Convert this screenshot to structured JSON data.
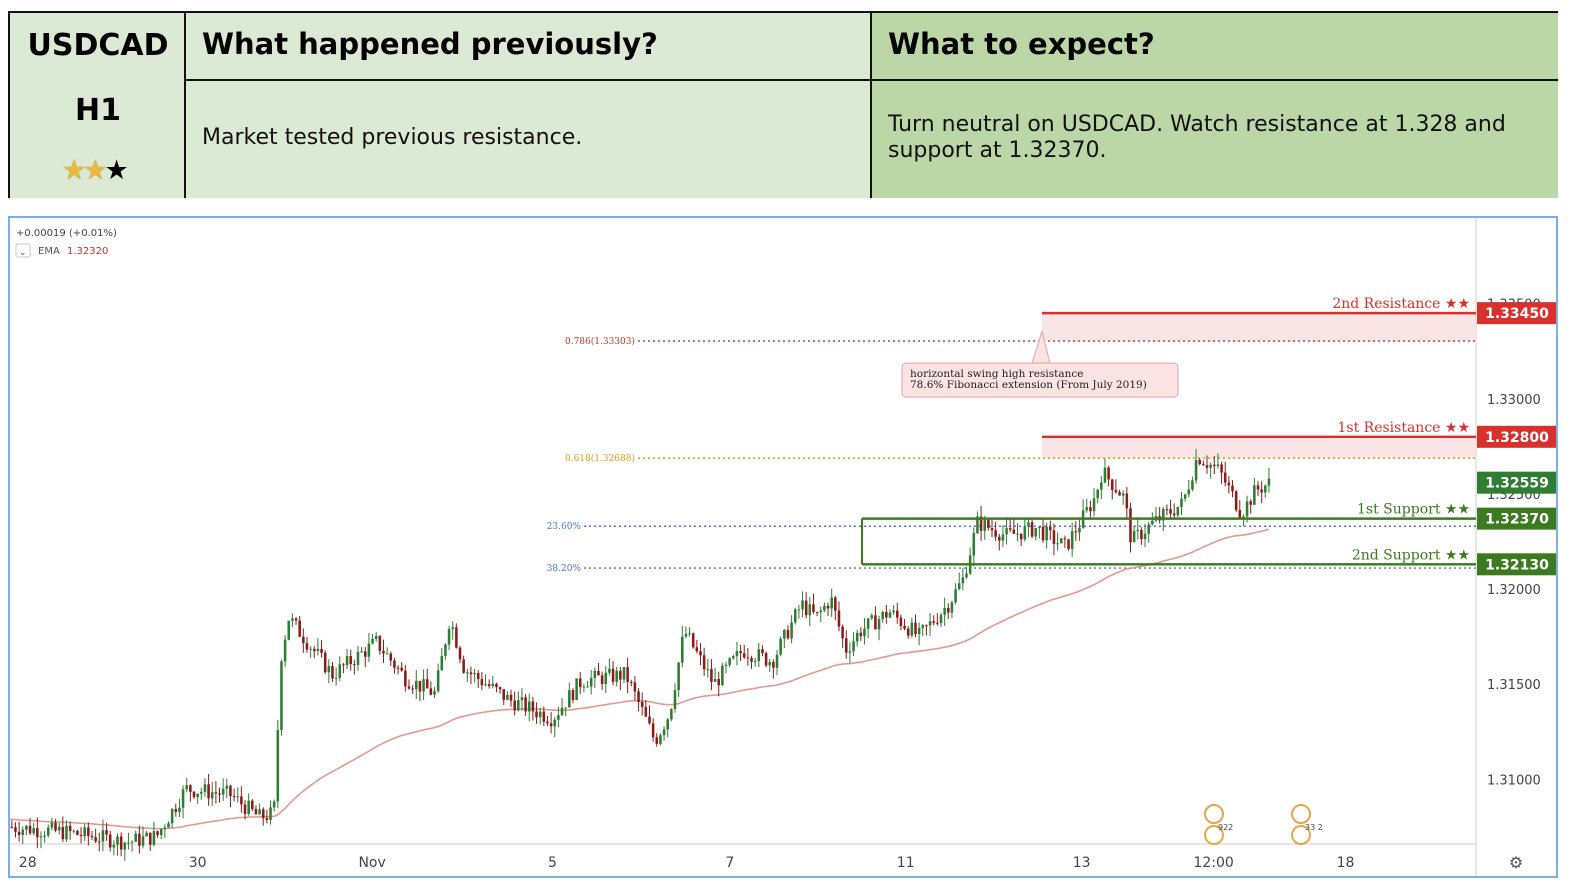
{
  "header": {
    "symbol": "USDCAD",
    "timeframe": "H1",
    "rating": {
      "filled": 2,
      "total": 3
    },
    "previous_title": "What happened previously?",
    "previous_text": "Market tested previous resistance.",
    "expect_title": "What to expect?",
    "expect_text": "Turn neutral on USDCAD. Watch resistance at 1.328 and support at 1.32370."
  },
  "colors": {
    "header_left": "#dce9d4",
    "header_right": "#bcd7a7",
    "resistance": "#d9302b",
    "support": "#3c7a1f",
    "ema": "#e29b90",
    "bull": "#2f7d32",
    "bear": "#8d1b1b"
  },
  "legend": {
    "change": "+0.00019 (+0.01%)",
    "ema_label": "EMA",
    "ema_value": "1.32320"
  },
  "chart_data": {
    "type": "candlestick",
    "symbol": "USDCAD",
    "timeframe": "H1",
    "ylim": [
      1.3066,
      1.3395
    ],
    "y_ticks": [
      "1.31000",
      "1.31500",
      "1.32000",
      "1.32500",
      "1.33000",
      "1.33500"
    ],
    "x_ticks": [
      "28",
      "30",
      "Nov",
      "5",
      "7",
      "11",
      "13",
      "12:00",
      "18"
    ],
    "price_path": [
      [
        0.0,
        1.3075
      ],
      [
        0.04,
        1.3072
      ],
      [
        0.08,
        1.3067
      ],
      [
        0.1,
        1.307
      ],
      [
        0.12,
        1.3095
      ],
      [
        0.15,
        1.3092
      ],
      [
        0.17,
        1.308
      ],
      [
        0.18,
        1.3082
      ],
      [
        0.185,
        1.3165
      ],
      [
        0.19,
        1.3185
      ],
      [
        0.22,
        1.3155
      ],
      [
        0.25,
        1.3172
      ],
      [
        0.27,
        1.3153
      ],
      [
        0.29,
        1.3145
      ],
      [
        0.3,
        1.3185
      ],
      [
        0.31,
        1.3158
      ],
      [
        0.34,
        1.3142
      ],
      [
        0.37,
        1.3132
      ],
      [
        0.39,
        1.3152
      ],
      [
        0.42,
        1.3155
      ],
      [
        0.43,
        1.3138
      ],
      [
        0.44,
        1.312
      ],
      [
        0.45,
        1.3135
      ],
      [
        0.46,
        1.3178
      ],
      [
        0.48,
        1.315
      ],
      [
        0.5,
        1.3168
      ],
      [
        0.52,
        1.3162
      ],
      [
        0.54,
        1.3192
      ],
      [
        0.55,
        1.3185
      ],
      [
        0.56,
        1.3195
      ],
      [
        0.57,
        1.3168
      ],
      [
        0.58,
        1.3178
      ],
      [
        0.6,
        1.3188
      ],
      [
        0.62,
        1.3175
      ],
      [
        0.64,
        1.3192
      ],
      [
        0.65,
        1.3205
      ],
      [
        0.66,
        1.3235
      ],
      [
        0.68,
        1.3228
      ],
      [
        0.7,
        1.3232
      ],
      [
        0.72,
        1.3222
      ],
      [
        0.74,
        1.3248
      ],
      [
        0.745,
        1.3262
      ],
      [
        0.76,
        1.3248
      ],
      [
        0.765,
        1.3225
      ],
      [
        0.78,
        1.3235
      ],
      [
        0.8,
        1.3245
      ],
      [
        0.81,
        1.327
      ],
      [
        0.825,
        1.3262
      ],
      [
        0.84,
        1.324
      ],
      [
        0.85,
        1.3252
      ],
      [
        0.86,
        1.3256
      ]
    ],
    "ema": {
      "label": "EMA",
      "value": 1.3232
    },
    "levels": [
      {
        "name": "2nd Resistance",
        "stars": "★★",
        "value": 1.3345,
        "label": "1.33450",
        "kind": "resistance"
      },
      {
        "name": "1st Resistance",
        "stars": "★★",
        "value": 1.328,
        "label": "1.32800",
        "kind": "resistance"
      },
      {
        "name": "1st Support",
        "stars": "★★",
        "value": 1.3237,
        "label": "1.32370",
        "kind": "support"
      },
      {
        "name": "2nd Support",
        "stars": "★★",
        "value": 1.3213,
        "label": "1.32130",
        "kind": "support"
      }
    ],
    "current_price": {
      "value": 1.32559,
      "label": "1.32559"
    },
    "fibonacci": [
      {
        "label": "0.786(1.33303)",
        "value": 1.33303
      },
      {
        "label": "0.618(1.32688)",
        "value": 1.32688
      },
      {
        "label": "23.60%",
        "value": 1.3233
      },
      {
        "label": "38.20%",
        "value": 1.3211
      }
    ],
    "annotation": {
      "line1": "horizontal swing high resistance",
      "line2": "78.6% Fibonacci extension (From July 2019)"
    },
    "event_markers": [
      {
        "label": "922"
      },
      {
        "label": "33 2"
      }
    ]
  }
}
